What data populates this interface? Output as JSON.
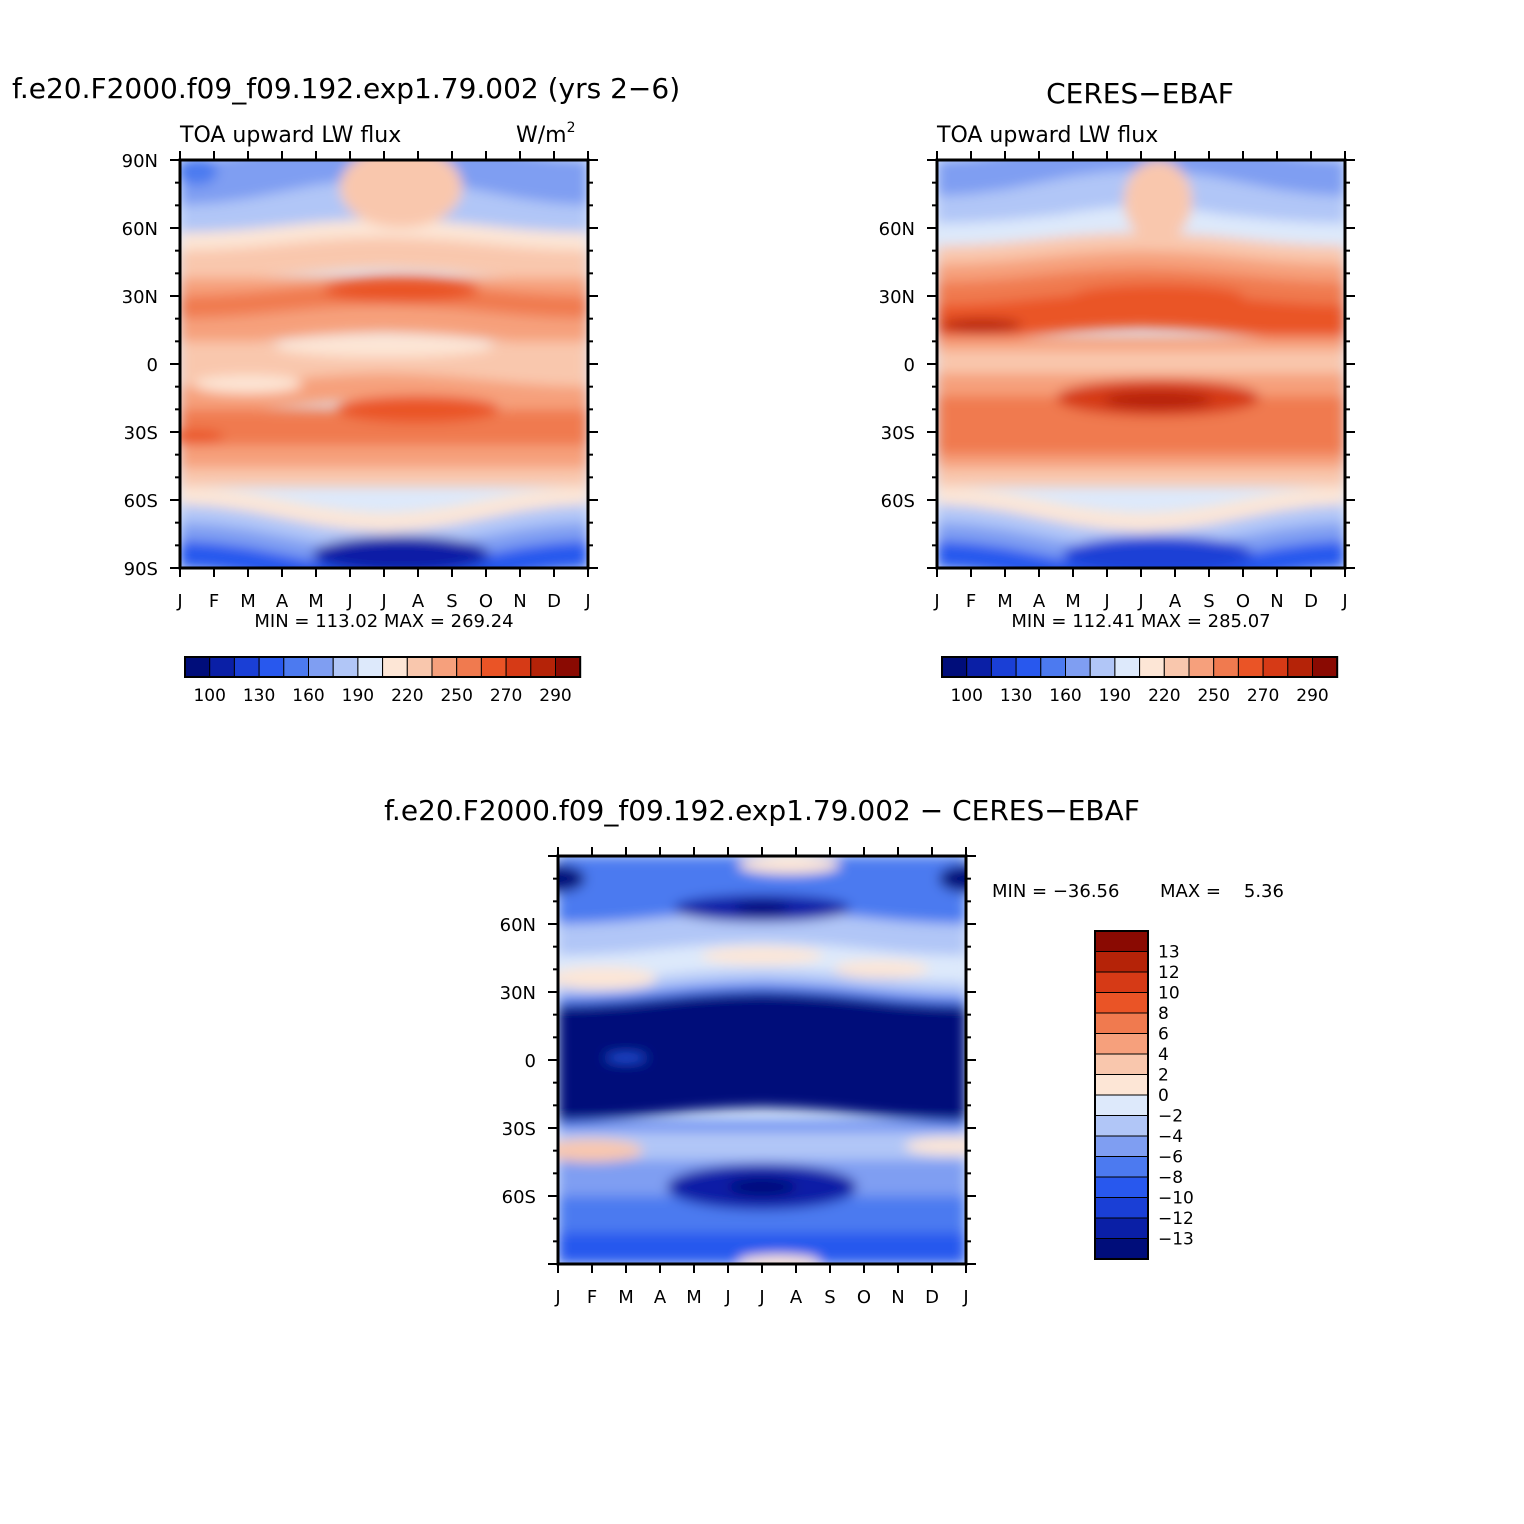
{
  "colors": {
    "scale": [
      "#000d7a",
      "#0a1fa6",
      "#1a3fd6",
      "#2858ee",
      "#4c7af0",
      "#7f9ef2",
      "#b1c6f7",
      "#dde9fb",
      "#fde6d6",
      "#f9c7ad",
      "#f6a07c",
      "#f07a4f",
      "#ea5426",
      "#d63a16",
      "#b52308",
      "#8a0a02"
    ],
    "axis": "#000000",
    "background": "#ffffff"
  },
  "panels": {
    "model": {
      "title": "f.e20.F2000.f09_f09.192.exp1.79.002 (yrs 2−6)",
      "left_label": "TOA upward LW flux",
      "right_label": "W/m",
      "right_label_sup": "2",
      "stats": "MIN = 113.02 MAX = 269.24"
    },
    "obs": {
      "title": "CERES−EBAF",
      "left_label": "TOA upward LW flux",
      "stats": "MIN = 112.41 MAX = 285.07"
    },
    "diff": {
      "title": "f.e20.F2000.f09_f09.192.exp1.79.002 − CERES−EBAF",
      "stats_min": "MIN = −36.56",
      "stats_max": "MAX =    5.36"
    }
  },
  "axes": {
    "months": [
      "J",
      "F",
      "M",
      "A",
      "M",
      "J",
      "J",
      "A",
      "S",
      "O",
      "N",
      "D",
      "J"
    ],
    "lat_labels_model": [
      "90N",
      "60N",
      "30N",
      "0",
      "30S",
      "60S",
      "90S"
    ],
    "lat_labels_short": [
      "60N",
      "30N",
      "0",
      "30S",
      "60S"
    ]
  },
  "colorbars": {
    "top_labels": [
      "100",
      "130",
      "160",
      "190",
      "220",
      "250",
      "270",
      "290"
    ],
    "diff_labels": [
      "13",
      "12",
      "10",
      "8",
      "6",
      "4",
      "2",
      "0",
      "−2",
      "−4",
      "−6",
      "−8",
      "−10",
      "−12",
      "−13"
    ]
  },
  "chart_data": [
    {
      "type": "heatmap",
      "title": "f.e20.F2000.f09_f09.192.exp1.79.002 (yrs 2−6)",
      "variable": "TOA upward LW flux",
      "units": "W/m2",
      "x": [
        "J",
        "F",
        "M",
        "A",
        "M",
        "J",
        "J",
        "A",
        "S",
        "O",
        "N",
        "D",
        "J"
      ],
      "y_range": [
        -90,
        90
      ],
      "min": 113.02,
      "max": 269.24,
      "levels": [
        100,
        110,
        120,
        130,
        140,
        150,
        160,
        170,
        180,
        190,
        200,
        210,
        220,
        230,
        240,
        250,
        260,
        270,
        280,
        290
      ]
    },
    {
      "type": "heatmap",
      "title": "CERES−EBAF",
      "variable": "TOA upward LW flux",
      "units": "W/m2",
      "x": [
        "J",
        "F",
        "M",
        "A",
        "M",
        "J",
        "J",
        "A",
        "S",
        "O",
        "N",
        "D",
        "J"
      ],
      "y_range": [
        -90,
        90
      ],
      "min": 112.41,
      "max": 285.07,
      "levels": [
        100,
        110,
        120,
        130,
        140,
        150,
        160,
        170,
        180,
        190,
        200,
        210,
        220,
        230,
        240,
        250,
        260,
        270,
        280,
        290
      ]
    },
    {
      "type": "heatmap",
      "title": "f.e20.F2000.f09_f09.192.exp1.79.002 − CERES−EBAF",
      "x": [
        "J",
        "F",
        "M",
        "A",
        "M",
        "J",
        "J",
        "A",
        "S",
        "O",
        "N",
        "D",
        "J"
      ],
      "y_range": [
        -90,
        90
      ],
      "min": -36.56,
      "max": 5.36,
      "levels": [
        -13,
        -12,
        -10,
        -8,
        -6,
        -4,
        -2,
        0,
        2,
        4,
        6,
        8,
        10,
        12,
        13
      ]
    }
  ]
}
